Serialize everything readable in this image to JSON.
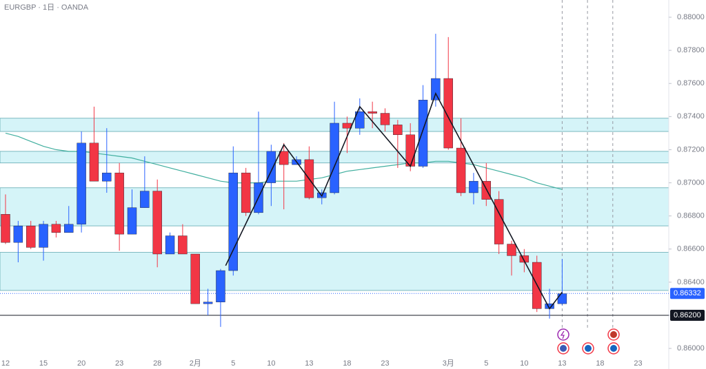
{
  "chart_data": {
    "type": "candlestick",
    "title": "EURGBP · 1日 · OANDA",
    "categories": [
      "12",
      null,
      null,
      "15",
      null,
      null,
      "20",
      null,
      null,
      "23",
      null,
      null,
      "28",
      null,
      null,
      "2月",
      null,
      null,
      "5",
      null,
      null,
      "10",
      null,
      null,
      "13",
      null,
      null,
      "18",
      null,
      null,
      "23",
      null,
      null,
      null,
      null,
      "3月",
      null,
      null,
      "5",
      null,
      null,
      "10",
      null,
      null,
      "13",
      null,
      null,
      "18",
      null,
      null,
      "23",
      null,
      null
    ],
    "open": [
      0.8681,
      0.8664,
      0.8674,
      0.8661,
      0.8675,
      0.867,
      0.8675,
      0.8724,
      0.8701,
      0.8706,
      0.8669,
      0.8685,
      0.8695,
      0.8657,
      0.8668,
      0.8657,
      0.8627,
      0.8628,
      0.8647,
      0.8706,
      0.8682,
      0.87,
      0.8719,
      0.8711,
      0.8714,
      0.8691,
      0.8694,
      0.8736,
      0.8733,
      0.8743,
      0.8742,
      0.8735,
      0.8729,
      0.871,
      0.875,
      0.8763,
      0.8721,
      0.8694,
      0.8701,
      0.869,
      0.8663,
      0.8656,
      0.8652,
      0.8624,
      0.8627,
      null,
      null,
      null,
      null,
      null,
      null,
      null,
      null
    ],
    "high": [
      0.8693,
      0.8677,
      0.8677,
      0.8677,
      0.8677,
      0.8686,
      0.8731,
      0.8746,
      0.8733,
      0.8712,
      0.8696,
      0.8716,
      0.8702,
      0.867,
      0.8675,
      0.8657,
      0.8636,
      0.8648,
      0.8722,
      0.8709,
      0.8743,
      0.8723,
      0.8724,
      0.8716,
      0.8722,
      0.8696,
      0.8749,
      0.874,
      0.8751,
      0.8749,
      0.8745,
      0.8738,
      0.8736,
      0.8759,
      0.879,
      0.8788,
      0.8739,
      0.8706,
      0.8712,
      0.8695,
      0.8665,
      0.866,
      0.8656,
      0.8636,
      0.8654,
      null,
      null,
      null,
      null,
      null,
      null,
      null,
      null
    ],
    "low": [
      0.8663,
      0.8652,
      0.866,
      0.8653,
      0.8667,
      0.867,
      0.867,
      0.8701,
      0.8694,
      0.8659,
      0.8669,
      0.8685,
      0.8649,
      0.8657,
      0.8657,
      0.8627,
      0.862,
      0.8613,
      0.8644,
      0.868,
      0.8681,
      0.8686,
      0.8684,
      0.8711,
      0.869,
      0.8687,
      0.8693,
      0.8718,
      0.8729,
      0.8733,
      0.8731,
      0.8709,
      0.8707,
      0.8709,
      0.8746,
      0.872,
      0.8692,
      0.8687,
      0.8686,
      0.8657,
      0.8644,
      0.8646,
      0.8622,
      0.8618,
      0.8626,
      null,
      null,
      null,
      null,
      null,
      null,
      null,
      null
    ],
    "close": [
      0.8664,
      0.8674,
      0.8661,
      0.8675,
      0.867,
      0.8675,
      0.8724,
      0.8701,
      0.8706,
      0.8669,
      0.8685,
      0.8695,
      0.8657,
      0.8668,
      0.8657,
      0.8627,
      0.8628,
      0.8647,
      0.8706,
      0.8682,
      0.87,
      0.8719,
      0.8711,
      0.8714,
      0.8691,
      0.8694,
      0.8736,
      0.8733,
      0.8743,
      0.8742,
      0.8735,
      0.8729,
      0.871,
      0.875,
      0.8763,
      0.8721,
      0.8694,
      0.8701,
      0.869,
      0.8663,
      0.8656,
      0.8652,
      0.8624,
      0.8627,
      0.8633,
      null,
      null,
      null,
      null,
      null,
      null,
      null,
      null
    ],
    "up_color": "#2962ff",
    "down_color": "#f23645",
    "moving_average": {
      "color": "#3fae9e",
      "values": [
        0.873,
        0.8728,
        0.8725,
        0.8722,
        0.872,
        0.8719,
        0.8719,
        0.8718,
        0.8717,
        0.8716,
        0.8715,
        0.8713,
        0.8711,
        0.8709,
        0.8707,
        0.8705,
        0.8703,
        0.8701,
        0.87,
        0.87,
        0.87,
        0.8701,
        0.8701,
        0.8701,
        0.8702,
        0.8703,
        0.8705,
        0.8707,
        0.8708,
        0.8709,
        0.871,
        0.8711,
        0.8712,
        0.8712,
        0.8713,
        0.8713,
        0.8712,
        0.8711,
        0.8709,
        0.8707,
        0.8705,
        0.8703,
        0.87,
        0.8698,
        0.8696,
        null,
        null,
        null,
        null,
        null,
        null,
        null,
        null
      ]
    },
    "zigzag": {
      "color": "#131722",
      "x": [
        17.4,
        22,
        25,
        28,
        32,
        34,
        43,
        44
      ],
      "values": [
        0.865,
        0.8723,
        0.8692,
        0.8746,
        0.871,
        0.8754,
        0.8624,
        0.8634
      ]
    },
    "zones": [
      [
        0.8731,
        0.8739
      ],
      [
        0.8712,
        0.8719
      ],
      [
        0.8674,
        0.8697
      ],
      [
        0.8635,
        0.8658
      ]
    ],
    "zone_color": "#b2ebf2",
    "event_lines": [
      44,
      46,
      48
    ],
    "ylim": [
      0.85963,
      0.88104
    ],
    "yticks": [
      {
        "value": 0.86,
        "label": "0.86000"
      },
      {
        "value": 0.862,
        "label": "0.86200"
      },
      {
        "value": 0.864,
        "label": "0.86400"
      },
      {
        "value": 0.866,
        "label": "0.86600"
      },
      {
        "value": 0.868,
        "label": "0.86800"
      },
      {
        "value": 0.87,
        "label": "0.87000"
      },
      {
        "value": 0.872,
        "label": "0.87200"
      },
      {
        "value": 0.874,
        "label": "0.87400"
      },
      {
        "value": 0.876,
        "label": "0.87600"
      },
      {
        "value": 0.878,
        "label": "0.87800"
      },
      {
        "value": 0.88,
        "label": "0.88000"
      }
    ],
    "last_price": {
      "value": 0.86332,
      "label": "0.86332"
    },
    "level": {
      "value": 0.862,
      "label": "0.86200"
    }
  }
}
